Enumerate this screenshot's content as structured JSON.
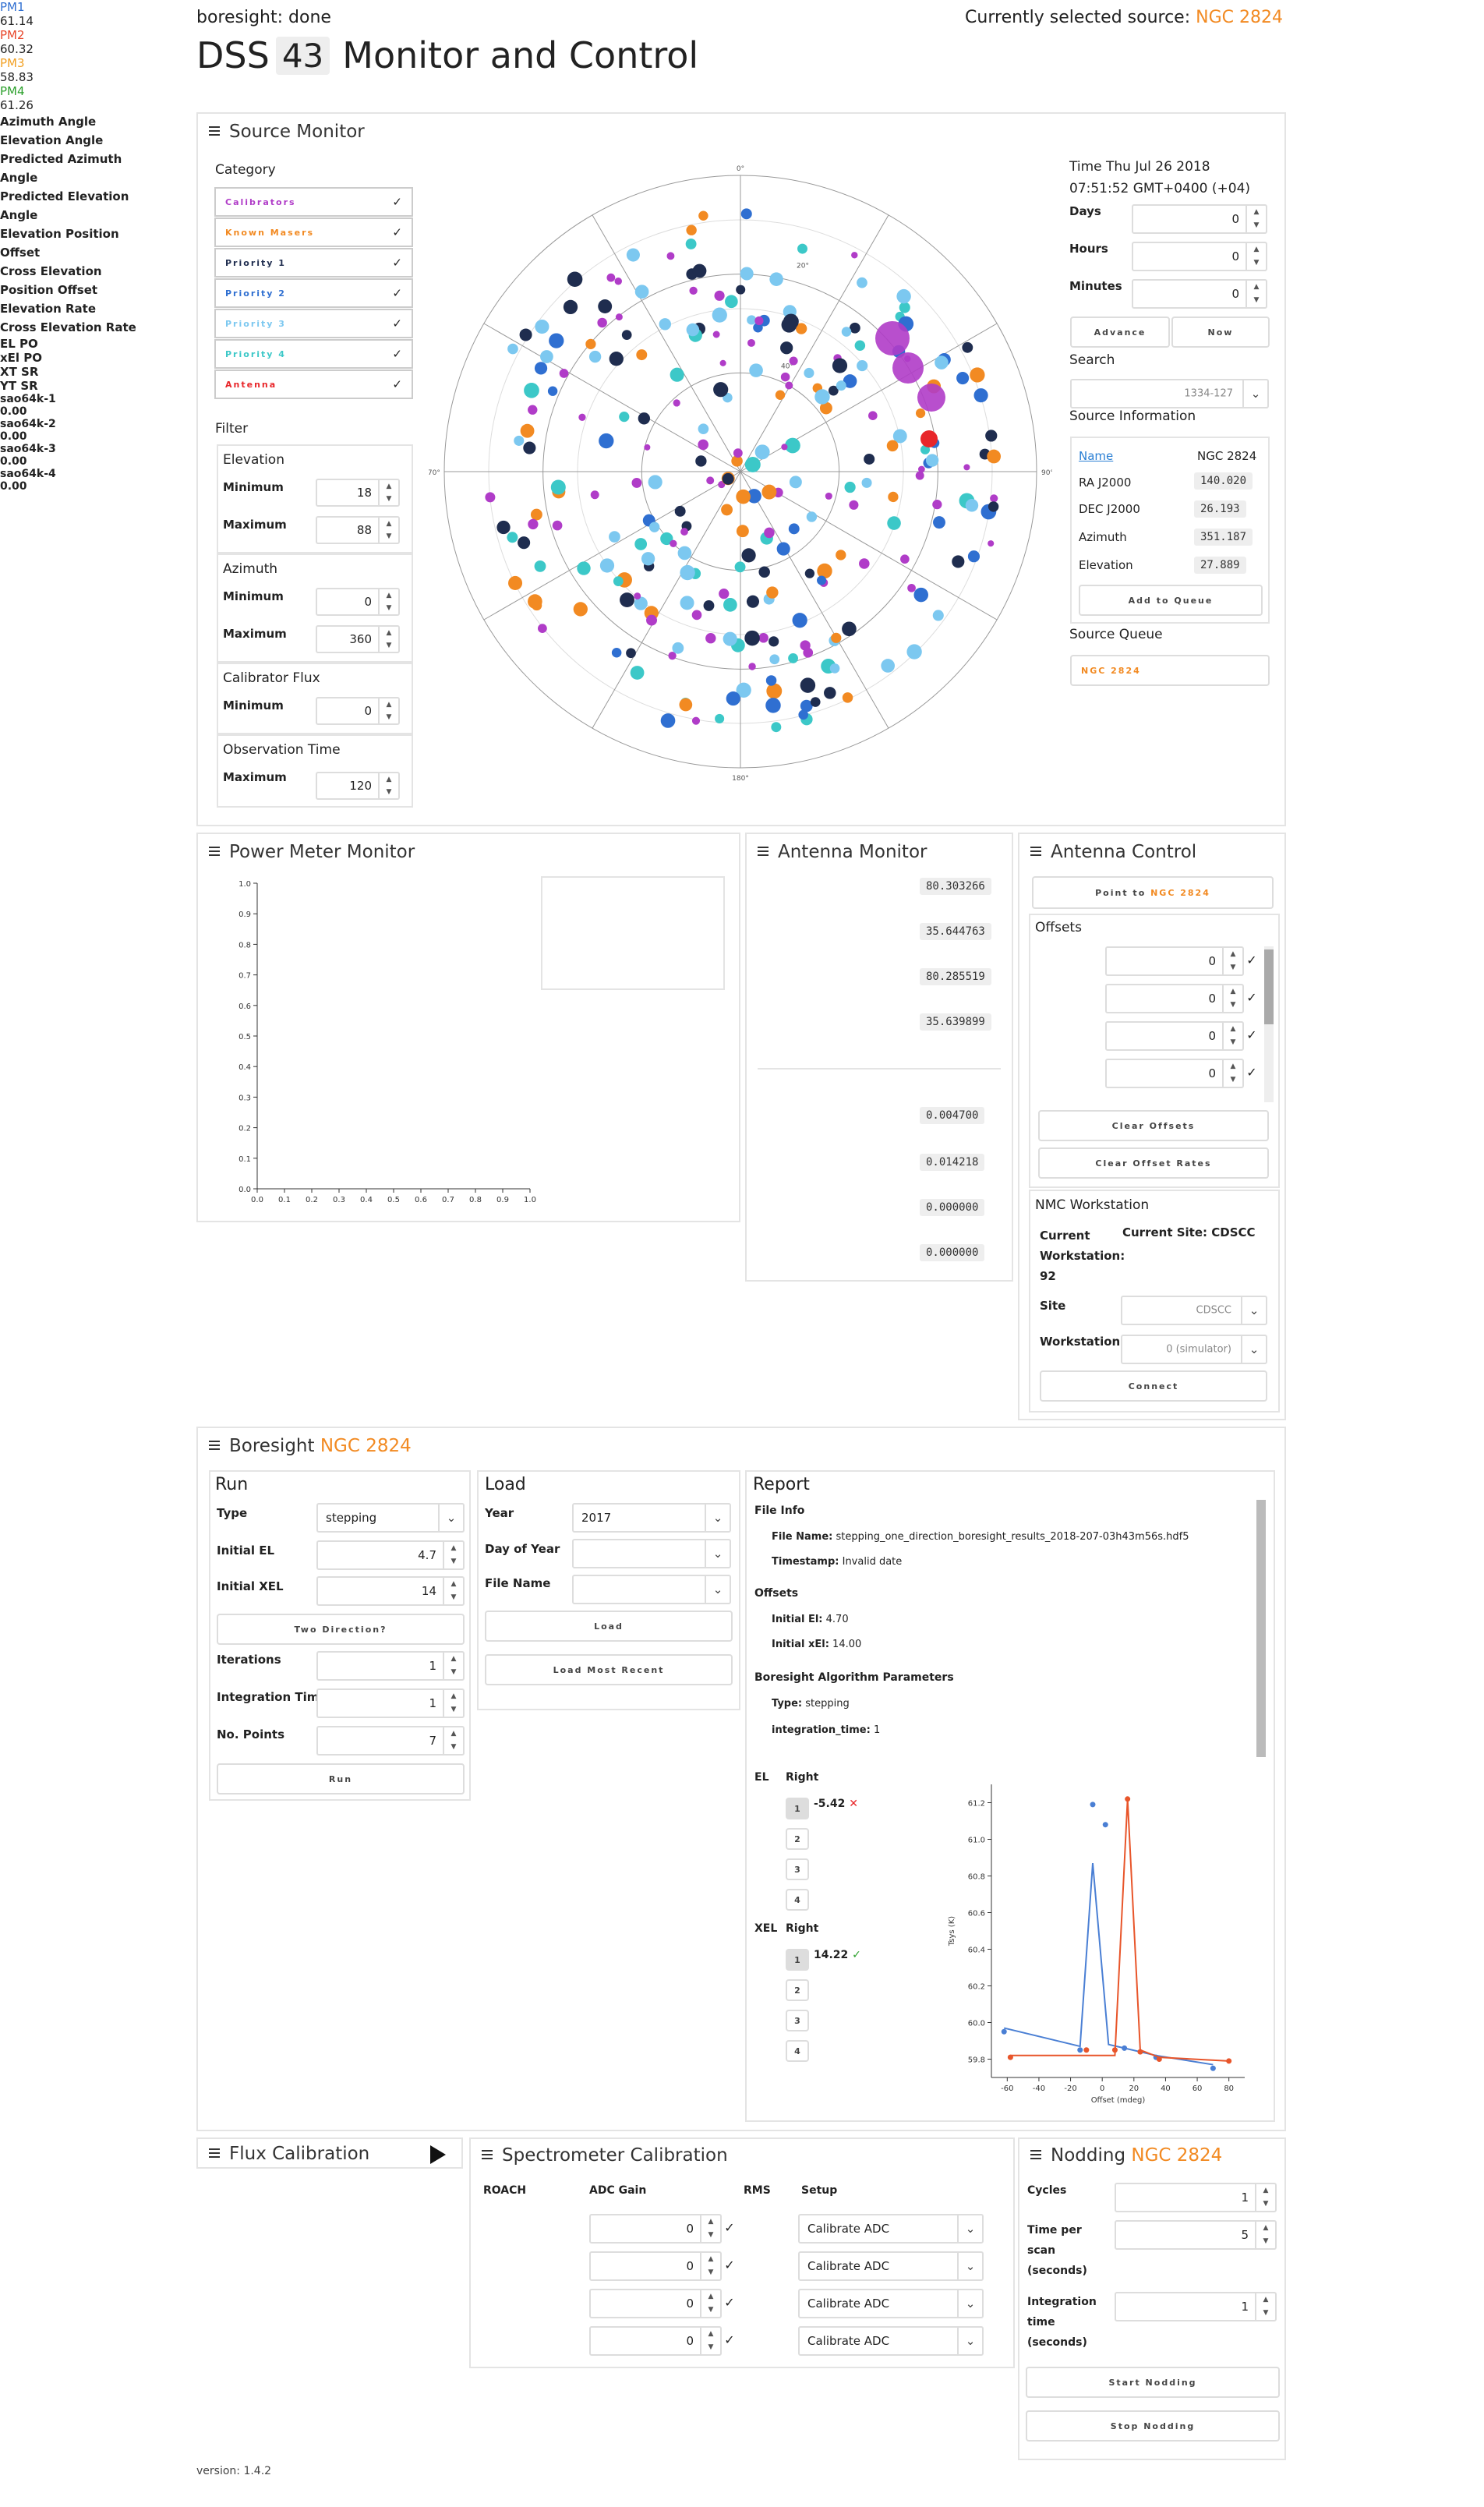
{
  "header": {
    "status": "boresight: done",
    "title_prefix": "DSS",
    "station": "43",
    "title_suffix": "Monitor and Control",
    "selected_label": "Currently selected source:",
    "selected_source": "NGC 2824"
  },
  "source_monitor": {
    "title": "Source Monitor",
    "category_label": "Category",
    "categories": [
      {
        "label": "Calibrators",
        "color": "#b03cc8"
      },
      {
        "label": "Known Masers",
        "color": "#f28a22"
      },
      {
        "label": "Priority 1",
        "color": "#1f2d4f"
      },
      {
        "label": "Priority 2",
        "color": "#2f6fd1"
      },
      {
        "label": "Priority 3",
        "color": "#7cc8f0"
      },
      {
        "label": "Priority 4",
        "color": "#3cc8c8"
      },
      {
        "label": "Antenna",
        "color": "#e8262a"
      }
    ],
    "filter_label": "Filter",
    "elevation": {
      "title": "Elevation",
      "min_label": "Minimum",
      "min": "18",
      "max_label": "Maximum",
      "max": "88"
    },
    "azimuth": {
      "title": "Azimuth",
      "min_label": "Minimum",
      "min": "0",
      "max_label": "Maximum",
      "max": "360"
    },
    "flux": {
      "title": "Calibrator Flux",
      "min_label": "Minimum",
      "min": "0"
    },
    "obs_time": {
      "title": "Observation Time",
      "max_label": "Maximum",
      "max": "120"
    },
    "time_line1": "Time Thu Jul 26 2018",
    "time_line2": "07:51:52 GMT+0400 (+04)",
    "days_label": "Days",
    "days": "0",
    "hours_label": "Hours",
    "hours": "0",
    "minutes_label": "Minutes",
    "minutes": "0",
    "advance": "Advance",
    "now": "Now",
    "search_label": "Search",
    "search_value": "1334-127",
    "info_label": "Source Information",
    "info": {
      "name_label": "Name",
      "name": "NGC 2824",
      "ra_label": "RA J2000",
      "ra": "140.020",
      "dec_label": "DEC J2000",
      "dec": "26.193",
      "az_label": "Azimuth",
      "az": "351.187",
      "el_label": "Elevation",
      "el": "27.889"
    },
    "add_queue": "Add to Queue",
    "queue_label": "Source Queue",
    "queue_item": "NGC 2824",
    "polar_labels": {
      "top": "0°",
      "right": "90°",
      "bottom": "180°",
      "left": "270°",
      "r20": "20°",
      "r40": "40°",
      "r60": "60°",
      "north": "0°"
    }
  },
  "power_meter": {
    "title": "Power Meter Monitor",
    "legend": [
      {
        "name": "PM1",
        "value": "61.14",
        "color": "#2f6fd1"
      },
      {
        "name": "PM2",
        "value": "60.32",
        "color": "#e8462a"
      },
      {
        "name": "PM3",
        "value": "58.83",
        "color": "#f2a022"
      },
      {
        "name": "PM4",
        "value": "61.26",
        "color": "#2ca02c"
      }
    ],
    "y_ticks": [
      "0.0",
      "0.1",
      "0.2",
      "0.3",
      "0.4",
      "0.5",
      "0.6",
      "0.7",
      "0.8",
      "0.9",
      "1.0"
    ],
    "x_ticks": [
      "0.0",
      "0.1",
      "0.2",
      "0.3",
      "0.4",
      "0.5",
      "0.6",
      "0.7",
      "0.8",
      "0.9",
      "1.0"
    ]
  },
  "antenna_monitor": {
    "title": "Antenna Monitor",
    "rows": [
      {
        "label": "Azimuth Angle",
        "value": "80.303266"
      },
      {
        "label": "Elevation Angle",
        "value": "35.644763"
      },
      {
        "label": "Predicted Azimuth Angle",
        "value": "80.285519"
      },
      {
        "label": "Predicted Elevation Angle",
        "value": "35.639899"
      },
      {
        "label": "Elevation Position Offset",
        "value": "0.004700"
      },
      {
        "label": "Cross Elevation Position Offset",
        "value": "0.014218"
      },
      {
        "label": "Elevation Rate",
        "value": "0.000000"
      },
      {
        "label": "Cross Elevation Rate",
        "value": "0.000000"
      }
    ]
  },
  "antenna_control": {
    "title": "Antenna Control",
    "point_to": "Point to",
    "point_source": "NGC 2824",
    "offsets_label": "Offsets",
    "offsets": [
      {
        "label": "EL PO",
        "value": "0"
      },
      {
        "label": "xEl PO",
        "value": "0"
      },
      {
        "label": "XT SR",
        "value": "0"
      },
      {
        "label": "YT SR",
        "value": "0"
      }
    ],
    "clear_offsets": "Clear Offsets",
    "clear_rates": "Clear Offset Rates",
    "nmc_title": "NMC Workstation",
    "current_ws_label": "Current Workstation:",
    "current_ws": "92",
    "current_site_label": "Current Site:",
    "current_site": "CDSCC",
    "site_label": "Site",
    "site_value": "CDSCC",
    "ws_label": "Workstation",
    "ws_value": "0 (simulator)",
    "connect": "Connect"
  },
  "boresight": {
    "title": "Boresight",
    "source": "NGC 2824",
    "run": {
      "title": "Run",
      "type_label": "Type",
      "type": "stepping",
      "init_el_label": "Initial EL",
      "init_el": "4.7",
      "init_xel_label": "Initial XEL",
      "init_xel": "14",
      "two_dir": "Two Direction?",
      "iter_label": "Iterations",
      "iter": "1",
      "int_label": "Integration Time",
      "int": "1",
      "points_label": "No. Points",
      "points": "7",
      "run_btn": "Run"
    },
    "load": {
      "title": "Load",
      "year_label": "Year",
      "year": "2017",
      "doy_label": "Day of Year",
      "file_label": "File Name",
      "load_btn": "Load",
      "recent_btn": "Load Most Recent"
    },
    "report": {
      "title": "Report",
      "file_info": "File Info",
      "file_name_label": "File Name:",
      "file_name": "stepping_one_direction_boresight_results_2018-207-03h43m56s.hdf5",
      "timestamp_label": "Timestamp:",
      "timestamp": "Invalid date",
      "offsets_label": "Offsets",
      "init_el_label": "Initial El:",
      "init_el": "4.70",
      "init_xel_label": "Initial xEl:",
      "init_xel": "14.00",
      "algo_label": "Boresight Algorithm Parameters",
      "type_label": "Type:",
      "type": "stepping",
      "int_label": "integration_time:",
      "int": "1",
      "el_label": "EL",
      "right_label": "Right",
      "el_value": "-5.42",
      "xel_label": "XEL",
      "xel_value": "14.22",
      "buttons": [
        "1",
        "2",
        "3",
        "4"
      ]
    }
  },
  "chart_data": {
    "type": "line",
    "xlabel": "Offset (mdeg)",
    "ylabel": "Tsys (K)",
    "xlim": [
      -70,
      90
    ],
    "ylim": [
      59.7,
      61.3
    ],
    "x_ticks": [
      "-60",
      "-40",
      "-20",
      "0",
      "20",
      "40",
      "60",
      "80"
    ],
    "y_ticks": [
      "59.8",
      "60.0",
      "60.2",
      "60.4",
      "60.6",
      "60.8",
      "61.0",
      "61.2"
    ],
    "series": [
      {
        "color": "#4a7fd4",
        "fit_x": [
          -62,
          -14,
          -6,
          4,
          14,
          34,
          70
        ],
        "fit_y": [
          59.97,
          59.87,
          60.87,
          59.88,
          59.86,
          59.82,
          59.77
        ],
        "pts_x": [
          -62,
          -14,
          -6,
          2,
          14,
          34,
          70
        ],
        "pts_y": [
          59.95,
          59.85,
          61.19,
          61.08,
          59.86,
          59.81,
          59.75
        ]
      },
      {
        "color": "#e8552a",
        "fit_x": [
          -58,
          -10,
          8,
          16,
          24,
          36,
          80
        ],
        "fit_y": [
          59.82,
          59.82,
          59.82,
          61.22,
          59.85,
          59.81,
          59.79
        ],
        "pts_x": [
          -58,
          -10,
          8,
          16,
          24,
          36,
          80
        ],
        "pts_y": [
          59.81,
          59.85,
          59.85,
          61.22,
          59.84,
          59.8,
          59.79
        ]
      }
    ]
  },
  "flux_calibration": {
    "title": "Flux Calibration"
  },
  "spectrometer": {
    "title": "Spectrometer Calibration",
    "col_roach": "ROACH",
    "col_gain": "ADC Gain",
    "col_rms": "RMS",
    "col_setup": "Setup",
    "rows": [
      {
        "name": "sao64k-1",
        "gain": "0",
        "rms": "0.00",
        "setup": "Calibrate ADC"
      },
      {
        "name": "sao64k-2",
        "gain": "0",
        "rms": "0.00",
        "setup": "Calibrate ADC"
      },
      {
        "name": "sao64k-3",
        "gain": "0",
        "rms": "0.00",
        "setup": "Calibrate ADC"
      },
      {
        "name": "sao64k-4",
        "gain": "0",
        "rms": "0.00",
        "setup": "Calibrate ADC"
      }
    ]
  },
  "nodding": {
    "title": "Nodding",
    "source": "NGC 2824",
    "cycles_label": "Cycles",
    "cycles": "1",
    "tps_label": "Time per scan (seconds)",
    "tps": "5",
    "it_label": "Integration time (seconds)",
    "it": "1",
    "start": "Start Nodding",
    "stop": "Stop Nodding"
  },
  "footer": {
    "version": "version: 1.4.2"
  }
}
